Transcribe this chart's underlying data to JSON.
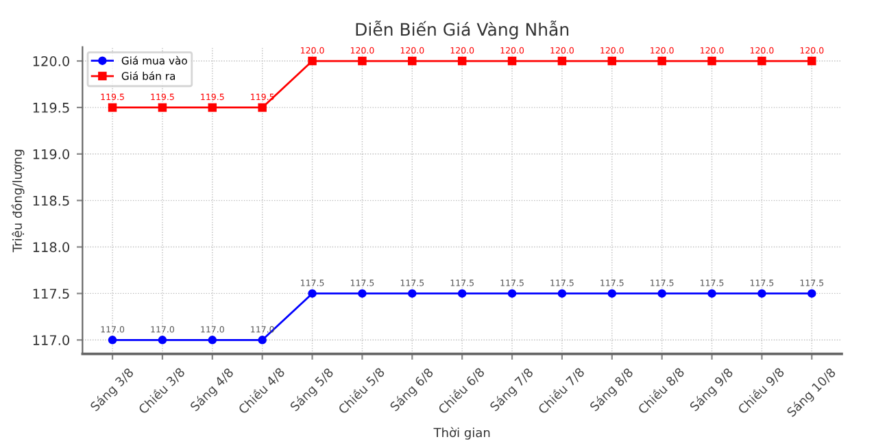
{
  "chart_data": {
    "type": "line",
    "title": "Diễn Biến Giá Vàng Nhẫn",
    "xlabel": "Thời gian",
    "ylabel": "Triệu đồng/lượng",
    "categories": [
      "Sáng 3/8",
      "Chiều 3/8",
      "Sáng 4/8",
      "Chiều 4/8",
      "Sáng 5/8",
      "Chiều 5/8",
      "Sáng 6/8",
      "Chiều 6/8",
      "Sáng 7/8",
      "Chiều 7/8",
      "Sáng 8/8",
      "Chiều 8/8",
      "Sáng 9/8",
      "Chiều 9/8",
      "Sáng 10/8"
    ],
    "series": [
      {
        "name": "Giá mua vào",
        "color": "#0000ff",
        "marker": "circle",
        "values": [
          117.0,
          117.0,
          117.0,
          117.0,
          117.5,
          117.5,
          117.5,
          117.5,
          117.5,
          117.5,
          117.5,
          117.5,
          117.5,
          117.5,
          117.5
        ],
        "value_labels": [
          "117.0",
          "117.0",
          "117.0",
          "117.0",
          "117.5",
          "117.5",
          "117.5",
          "117.5",
          "117.5",
          "117.5",
          "117.5",
          "117.5",
          "117.5",
          "117.5",
          "117.5"
        ]
      },
      {
        "name": "Giá bán ra",
        "color": "#ff0000",
        "marker": "square",
        "values": [
          119.5,
          119.5,
          119.5,
          119.5,
          120.0,
          120.0,
          120.0,
          120.0,
          120.0,
          120.0,
          120.0,
          120.0,
          120.0,
          120.0,
          120.0
        ],
        "value_labels": [
          "119.5",
          "119.5",
          "119.5",
          "119.5",
          "120.0",
          "120.0",
          "120.0",
          "120.0",
          "120.0",
          "120.0",
          "120.0",
          "120.0",
          "120.0",
          "120.0",
          "120.0"
        ]
      }
    ],
    "ylim": [
      116.85,
      120.15
    ],
    "yticks": [
      {
        "value": 117.0,
        "label": "117.0"
      },
      {
        "value": 117.5,
        "label": "117.5"
      },
      {
        "value": 118.0,
        "label": "118.0"
      },
      {
        "value": 118.5,
        "label": "118.5"
      },
      {
        "value": 119.0,
        "label": "119.0"
      },
      {
        "value": 119.5,
        "label": "119.5"
      },
      {
        "value": 120.0,
        "label": "120.0"
      }
    ],
    "grid": true,
    "legend": "top left",
    "line_style": "solid"
  }
}
